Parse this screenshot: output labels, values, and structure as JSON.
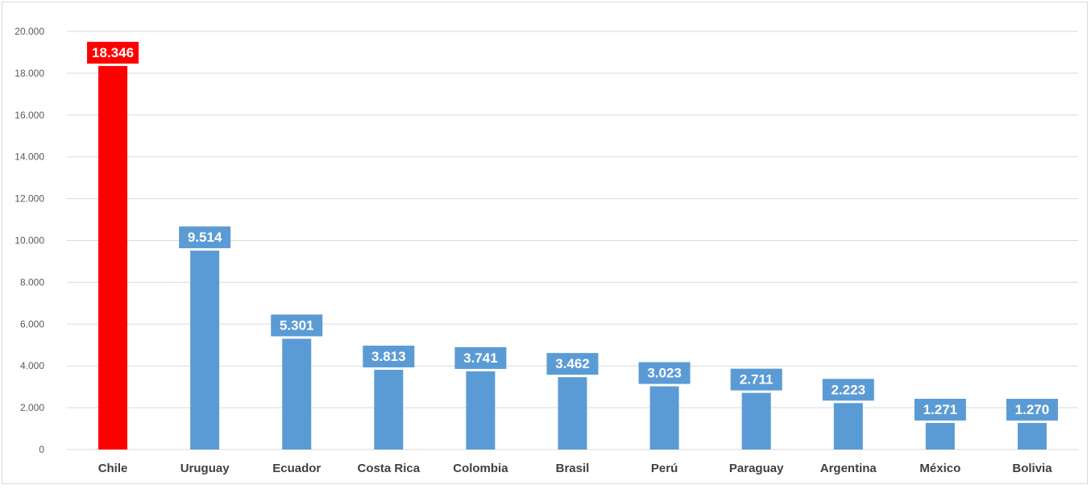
{
  "chart_data": {
    "type": "bar",
    "title": "",
    "xlabel": "",
    "ylabel": "",
    "categories": [
      "Chile",
      "Uruguay",
      "Ecuador",
      "Costa Rica",
      "Colombia",
      "Brasil",
      "Perú",
      "Paraguay",
      "Argentina",
      "México",
      "Bolivia"
    ],
    "values": [
      18346,
      9514,
      5301,
      3813,
      3741,
      3462,
      3023,
      2711,
      2223,
      1271,
      1270
    ],
    "value_labels": [
      "18.346",
      "9.514",
      "5.301",
      "3.813",
      "3.741",
      "3.462",
      "3.023",
      "2.711",
      "2.223",
      "1.271",
      "1.270"
    ],
    "ylim": [
      0,
      20000
    ],
    "y_ticks": [
      0,
      2000,
      4000,
      6000,
      8000,
      10000,
      12000,
      14000,
      16000,
      18000,
      20000
    ],
    "y_tick_labels": [
      "0",
      "2.000",
      "4.000",
      "6.000",
      "8.000",
      "10.000",
      "12.000",
      "14.000",
      "16.000",
      "18.000",
      "20.000"
    ],
    "grid": true,
    "legend": "none",
    "colors": {
      "default_bar": "#5b9bd5",
      "highlight_bar": "#ff0000",
      "gridline": "#d9d9d9",
      "tick_text": "#595959",
      "category_text": "#404040",
      "label_text": "#ffffff"
    },
    "highlight_index": 0
  }
}
